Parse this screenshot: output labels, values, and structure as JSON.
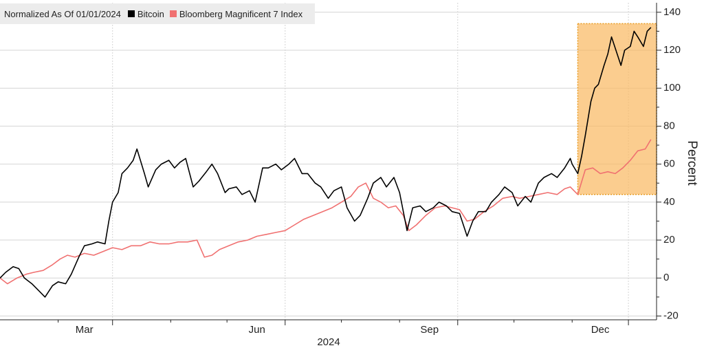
{
  "legend": {
    "title": "Normalized As Of 01/01/2024",
    "items": [
      {
        "name": "Bitcoin",
        "color": "#000000"
      },
      {
        "name": "Bloomberg Magnificent 7 Index",
        "color": "#f07070"
      }
    ]
  },
  "chart_data": {
    "type": "line",
    "title": "Normalized As Of 01/01/2024",
    "xlabel": "2024",
    "ylabel": "Percent",
    "ylim": [
      -22,
      145
    ],
    "xlim": [
      "2024-01-01",
      "2024-12-16"
    ],
    "yticks": [
      140,
      120,
      100,
      80,
      60,
      40,
      20,
      0,
      -20
    ],
    "xticks": [
      {
        "date": "2024-03-01",
        "label": "Mar"
      },
      {
        "date": "2024-06-01",
        "label": "Jun"
      },
      {
        "date": "2024-09-01",
        "label": "Sep"
      },
      {
        "date": "2024-12-01",
        "label": "Dec"
      }
    ],
    "year_label": "2024",
    "grid": true,
    "highlight": {
      "x_start": "2024-11-04",
      "x_end": "2024-12-16",
      "y_low": 44,
      "y_high": 134,
      "color": "#f9b860"
    },
    "series": [
      {
        "name": "Bitcoin",
        "color": "#000000",
        "points": [
          [
            "2024-01-01",
            0
          ],
          [
            "2024-01-04",
            3
          ],
          [
            "2024-01-08",
            6
          ],
          [
            "2024-01-11",
            5
          ],
          [
            "2024-01-14",
            0
          ],
          [
            "2024-01-18",
            -3
          ],
          [
            "2024-01-22",
            -7
          ],
          [
            "2024-01-25",
            -10
          ],
          [
            "2024-01-29",
            -4
          ],
          [
            "2024-02-01",
            -2
          ],
          [
            "2024-02-05",
            -3
          ],
          [
            "2024-02-08",
            2
          ],
          [
            "2024-02-12",
            11
          ],
          [
            "2024-02-15",
            17
          ],
          [
            "2024-02-19",
            18
          ],
          [
            "2024-02-22",
            19
          ],
          [
            "2024-02-26",
            18
          ],
          [
            "2024-02-28",
            30
          ],
          [
            "2024-03-01",
            40
          ],
          [
            "2024-03-04",
            45
          ],
          [
            "2024-03-06",
            55
          ],
          [
            "2024-03-09",
            58
          ],
          [
            "2024-03-12",
            62
          ],
          [
            "2024-03-14",
            68
          ],
          [
            "2024-03-18",
            55
          ],
          [
            "2024-03-20",
            48
          ],
          [
            "2024-03-24",
            57
          ],
          [
            "2024-03-27",
            60
          ],
          [
            "2024-03-31",
            62
          ],
          [
            "2024-04-03",
            58
          ],
          [
            "2024-04-06",
            61
          ],
          [
            "2024-04-09",
            63
          ],
          [
            "2024-04-13",
            48
          ],
          [
            "2024-04-16",
            51
          ],
          [
            "2024-04-20",
            56
          ],
          [
            "2024-04-23",
            60
          ],
          [
            "2024-04-26",
            55
          ],
          [
            "2024-04-30",
            45
          ],
          [
            "2024-05-02",
            47
          ],
          [
            "2024-05-06",
            48
          ],
          [
            "2024-05-09",
            44
          ],
          [
            "2024-05-13",
            46
          ],
          [
            "2024-05-16",
            40
          ],
          [
            "2024-05-20",
            58
          ],
          [
            "2024-05-23",
            58
          ],
          [
            "2024-05-27",
            60
          ],
          [
            "2024-05-30",
            57
          ],
          [
            "2024-06-03",
            60
          ],
          [
            "2024-06-06",
            63
          ],
          [
            "2024-06-10",
            55
          ],
          [
            "2024-06-13",
            55
          ],
          [
            "2024-06-17",
            50
          ],
          [
            "2024-06-20",
            48
          ],
          [
            "2024-06-24",
            42
          ],
          [
            "2024-06-27",
            46
          ],
          [
            "2024-07-01",
            48
          ],
          [
            "2024-07-04",
            37
          ],
          [
            "2024-07-08",
            30
          ],
          [
            "2024-07-11",
            33
          ],
          [
            "2024-07-15",
            42
          ],
          [
            "2024-07-18",
            50
          ],
          [
            "2024-07-22",
            53
          ],
          [
            "2024-07-25",
            48
          ],
          [
            "2024-07-29",
            53
          ],
          [
            "2024-08-01",
            45
          ],
          [
            "2024-08-05",
            25
          ],
          [
            "2024-08-08",
            37
          ],
          [
            "2024-08-12",
            38
          ],
          [
            "2024-08-15",
            35
          ],
          [
            "2024-08-19",
            37
          ],
          [
            "2024-08-22",
            40
          ],
          [
            "2024-08-26",
            38
          ],
          [
            "2024-08-29",
            35
          ],
          [
            "2024-09-02",
            34
          ],
          [
            "2024-09-06",
            22
          ],
          [
            "2024-09-09",
            30
          ],
          [
            "2024-09-12",
            35
          ],
          [
            "2024-09-16",
            35
          ],
          [
            "2024-09-19",
            40
          ],
          [
            "2024-09-23",
            44
          ],
          [
            "2024-09-26",
            48
          ],
          [
            "2024-09-30",
            45
          ],
          [
            "2024-10-03",
            38
          ],
          [
            "2024-10-07",
            43
          ],
          [
            "2024-10-10",
            40
          ],
          [
            "2024-10-14",
            50
          ],
          [
            "2024-10-17",
            53
          ],
          [
            "2024-10-21",
            55
          ],
          [
            "2024-10-24",
            53
          ],
          [
            "2024-10-28",
            58
          ],
          [
            "2024-10-31",
            63
          ],
          [
            "2024-11-01",
            60
          ],
          [
            "2024-11-04",
            55
          ],
          [
            "2024-11-06",
            64
          ],
          [
            "2024-11-08",
            75
          ],
          [
            "2024-11-11",
            93
          ],
          [
            "2024-11-13",
            100
          ],
          [
            "2024-11-15",
            102
          ],
          [
            "2024-11-18",
            112
          ],
          [
            "2024-11-20",
            118
          ],
          [
            "2024-11-22",
            127
          ],
          [
            "2024-11-25",
            118
          ],
          [
            "2024-11-27",
            112
          ],
          [
            "2024-11-29",
            120
          ],
          [
            "2024-12-02",
            122
          ],
          [
            "2024-12-04",
            130
          ],
          [
            "2024-12-06",
            127
          ],
          [
            "2024-12-09",
            122
          ],
          [
            "2024-12-11",
            130
          ],
          [
            "2024-12-13",
            132
          ]
        ]
      },
      {
        "name": "Bloomberg Magnificent 7 Index",
        "color": "#f07070",
        "points": [
          [
            "2024-01-01",
            0
          ],
          [
            "2024-01-05",
            -3
          ],
          [
            "2024-01-10",
            0
          ],
          [
            "2024-01-15",
            2
          ],
          [
            "2024-01-19",
            3
          ],
          [
            "2024-01-24",
            4
          ],
          [
            "2024-01-29",
            7
          ],
          [
            "2024-02-02",
            10
          ],
          [
            "2024-02-06",
            12
          ],
          [
            "2024-02-10",
            11
          ],
          [
            "2024-02-15",
            13
          ],
          [
            "2024-02-20",
            12
          ],
          [
            "2024-02-25",
            14
          ],
          [
            "2024-03-01",
            16
          ],
          [
            "2024-03-06",
            15
          ],
          [
            "2024-03-11",
            17
          ],
          [
            "2024-03-16",
            17
          ],
          [
            "2024-03-21",
            19
          ],
          [
            "2024-03-26",
            18
          ],
          [
            "2024-03-31",
            18
          ],
          [
            "2024-04-05",
            19
          ],
          [
            "2024-04-10",
            19
          ],
          [
            "2024-04-15",
            20
          ],
          [
            "2024-04-19",
            11
          ],
          [
            "2024-04-23",
            12
          ],
          [
            "2024-04-27",
            15
          ],
          [
            "2024-05-02",
            17
          ],
          [
            "2024-05-07",
            19
          ],
          [
            "2024-05-12",
            20
          ],
          [
            "2024-05-17",
            22
          ],
          [
            "2024-05-22",
            23
          ],
          [
            "2024-05-27",
            24
          ],
          [
            "2024-06-01",
            25
          ],
          [
            "2024-06-06",
            28
          ],
          [
            "2024-06-11",
            31
          ],
          [
            "2024-06-16",
            33
          ],
          [
            "2024-06-21",
            35
          ],
          [
            "2024-06-26",
            37
          ],
          [
            "2024-07-01",
            40
          ],
          [
            "2024-07-06",
            43
          ],
          [
            "2024-07-10",
            48
          ],
          [
            "2024-07-14",
            50
          ],
          [
            "2024-07-18",
            42
          ],
          [
            "2024-07-22",
            40
          ],
          [
            "2024-07-26",
            37
          ],
          [
            "2024-07-30",
            38
          ],
          [
            "2024-08-03",
            33
          ],
          [
            "2024-08-06",
            25
          ],
          [
            "2024-08-10",
            28
          ],
          [
            "2024-08-15",
            33
          ],
          [
            "2024-08-20",
            37
          ],
          [
            "2024-08-25",
            38
          ],
          [
            "2024-08-29",
            37
          ],
          [
            "2024-09-02",
            36
          ],
          [
            "2024-09-06",
            30
          ],
          [
            "2024-09-10",
            31
          ],
          [
            "2024-09-15",
            35
          ],
          [
            "2024-09-20",
            38
          ],
          [
            "2024-09-25",
            42
          ],
          [
            "2024-09-30",
            43
          ],
          [
            "2024-10-04",
            42
          ],
          [
            "2024-10-09",
            43
          ],
          [
            "2024-10-14",
            44
          ],
          [
            "2024-10-19",
            45
          ],
          [
            "2024-10-24",
            44
          ],
          [
            "2024-10-28",
            47
          ],
          [
            "2024-10-31",
            48
          ],
          [
            "2024-11-04",
            44
          ],
          [
            "2024-11-08",
            57
          ],
          [
            "2024-11-12",
            58
          ],
          [
            "2024-11-16",
            55
          ],
          [
            "2024-11-20",
            56
          ],
          [
            "2024-11-24",
            55
          ],
          [
            "2024-11-28",
            58
          ],
          [
            "2024-12-02",
            62
          ],
          [
            "2024-12-06",
            67
          ],
          [
            "2024-12-10",
            68
          ],
          [
            "2024-12-13",
            73
          ]
        ]
      }
    ]
  }
}
